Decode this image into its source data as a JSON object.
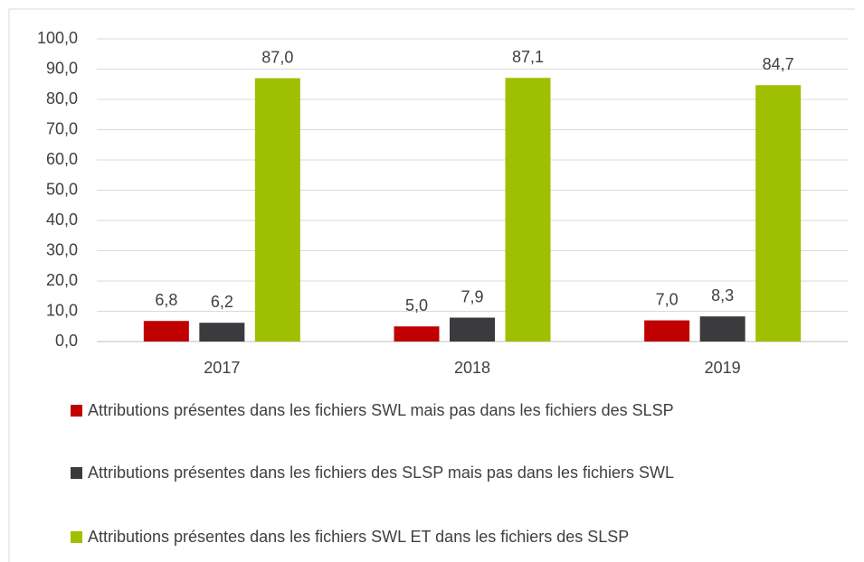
{
  "chart_data": {
    "type": "bar",
    "categories": [
      "2017",
      "2018",
      "2019"
    ],
    "series": [
      {
        "name": "Attributions présentes dans les fichiers SWL mais pas dans les fichiers des SLSP",
        "color": "#c00000",
        "values": [
          6.8,
          5.0,
          7.0
        ],
        "value_labels": [
          "6,8",
          "5,0",
          "7,0"
        ]
      },
      {
        "name": "Attributions présentes dans les fichiers des SLSP mais pas dans les fichiers SWL",
        "color": "#3b3b3d",
        "values": [
          6.2,
          7.9,
          8.3
        ],
        "value_labels": [
          "6,2",
          "7,9",
          "8,3"
        ]
      },
      {
        "name": "Attributions présentes dans les fichiers SWL ET dans les fichiers des SLSP",
        "color": "#9fc000",
        "values": [
          87.0,
          87.1,
          84.7
        ],
        "value_labels": [
          "87,0",
          "87,1",
          "84,7"
        ]
      }
    ],
    "ylim": [
      0,
      100
    ],
    "yticks": [
      {
        "value": 0,
        "label": "0,0"
      },
      {
        "value": 10,
        "label": "10,0"
      },
      {
        "value": 20,
        "label": "20,0"
      },
      {
        "value": 30,
        "label": "30,0"
      },
      {
        "value": 40,
        "label": "40,0"
      },
      {
        "value": 50,
        "label": "50,0"
      },
      {
        "value": 60,
        "label": "60,0"
      },
      {
        "value": 70,
        "label": "70,0"
      },
      {
        "value": 80,
        "label": "80,0"
      },
      {
        "value": 90,
        "label": "90,0"
      },
      {
        "value": 100,
        "label": "100,0"
      }
    ],
    "grid": true
  }
}
